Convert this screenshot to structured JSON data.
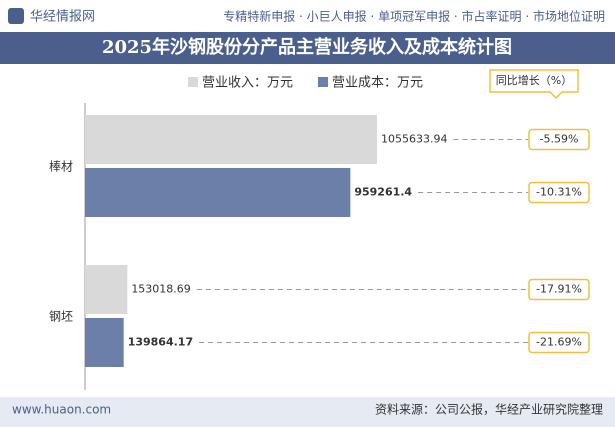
{
  "header": {
    "brand": "华经情报网",
    "services": "专精特新申报 · 小巨人申报 · 单项冠军申报 · 市占率证明 · 市场地位证明"
  },
  "chart_data": {
    "type": "hbar",
    "title": "2025年沙钢股份分产品主营业务收入及成本统计图",
    "categories": [
      "棒材",
      "钢坯"
    ],
    "series": [
      {
        "name": "营业收入：万元",
        "color": "#d9d9d9",
        "values": [
          1055633.94,
          153018.69
        ]
      },
      {
        "name": "营业成本：万元",
        "color": "#6b7fa9",
        "values": [
          959261.4,
          139864.17
        ]
      }
    ],
    "growth": {
      "name": "同比增长（%）",
      "values": [
        [
          -5.59,
          -10.31
        ],
        [
          -17.91,
          -21.69
        ]
      ],
      "value_labels": [
        [
          "-5.59%",
          "-10.31%"
        ],
        [
          "-17.91%",
          "-21.69%"
        ]
      ]
    }
  },
  "footer": {
    "site": "www.huaon.com",
    "source": "资料来源：公司公报，华经产业研究院整理"
  }
}
